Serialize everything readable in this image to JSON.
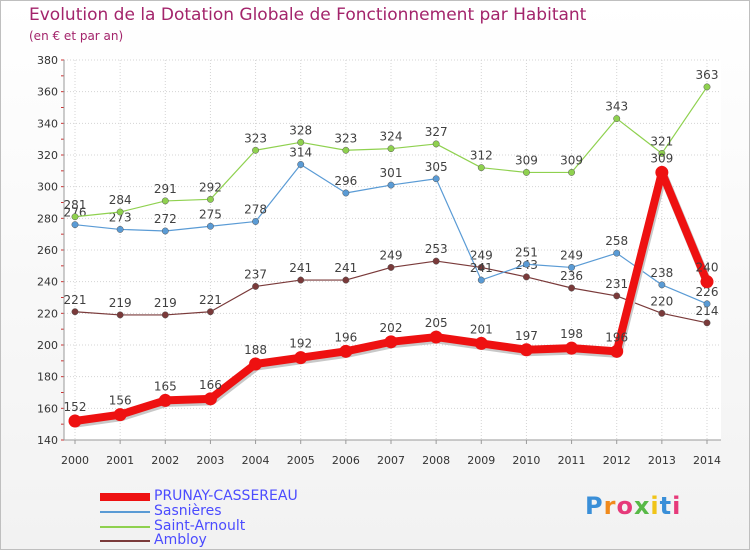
{
  "title": "Evolution de la Dotation Globale de Fonctionnement par Habitant",
  "subtitle": "(en € et par an)",
  "brand": "Proxiti",
  "chart_data": {
    "type": "line",
    "title": "Evolution de la Dotation Globale de Fonctionnement par Habitant",
    "ylabel": "(en € et par an)",
    "xlabel": "",
    "ylim": [
      140,
      380
    ],
    "yticks": [
      140,
      160,
      180,
      200,
      220,
      240,
      260,
      280,
      300,
      320,
      340,
      360,
      380
    ],
    "categories": [
      "2000",
      "2001",
      "2002",
      "2003",
      "2004",
      "2005",
      "2006",
      "2007",
      "2008",
      "2009",
      "2010",
      "2011",
      "2012",
      "2013",
      "2014"
    ],
    "grid": true,
    "legend_position": "bottom-left",
    "series": [
      {
        "name": "Ambloy",
        "color": "#7a3a3a",
        "values": [
          221,
          219,
          219,
          221,
          237,
          241,
          241,
          249,
          253,
          249,
          243,
          236,
          231,
          220,
          214
        ]
      },
      {
        "name": "Sasnières",
        "color": "#5a9bd5",
        "values": [
          276,
          273,
          272,
          275,
          278,
          314,
          296,
          301,
          305,
          241,
          251,
          249,
          258,
          238,
          226
        ]
      },
      {
        "name": "Saint-Arnoult",
        "color": "#8fd14f",
        "values": [
          281,
          284,
          291,
          292,
          323,
          328,
          323,
          324,
          327,
          312,
          309,
          309,
          343,
          321,
          363
        ]
      },
      {
        "name": "PRUNAY-CASSEREAU",
        "color": "#ee1111",
        "values": [
          152,
          156,
          165,
          166,
          188,
          192,
          196,
          202,
          205,
          201,
          197,
          198,
          196,
          309,
          240
        ]
      }
    ]
  }
}
